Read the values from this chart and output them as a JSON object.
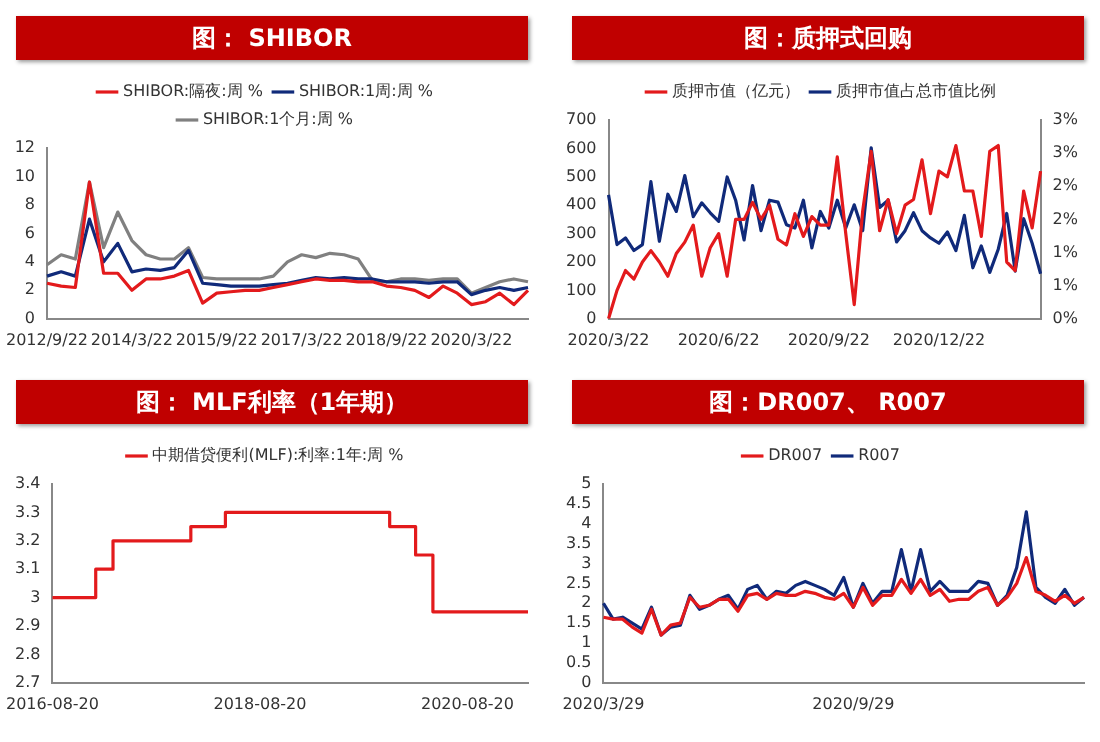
{
  "chart_data": [
    {
      "type": "line",
      "title": "图： SHIBOR",
      "legend": "top",
      "grid": false,
      "marker": "none",
      "ylim": [
        0,
        12
      ],
      "yticks": [
        0,
        2,
        4,
        6,
        8,
        10,
        12
      ],
      "categories": [
        "2012/9/22",
        null,
        null,
        null,
        null,
        null,
        "2014/3/22",
        null,
        null,
        null,
        null,
        null,
        "2015/9/22",
        null,
        null,
        null,
        null,
        null,
        "2017/3/22",
        null,
        null,
        null,
        null,
        null,
        "2018/9/22",
        null,
        null,
        null,
        null,
        null,
        "2020/3/22",
        null,
        null,
        null,
        null
      ],
      "series": [
        {
          "name": "SHIBOR:隔夜:周 %",
          "color": "#e31a1c",
          "values": [
            2.5,
            2.3,
            2.2,
            9.6,
            3.2,
            3.2,
            2.0,
            2.8,
            2.8,
            3.0,
            3.4,
            1.1,
            1.8,
            1.9,
            2.0,
            2.0,
            2.2,
            2.4,
            2.6,
            2.8,
            2.7,
            2.7,
            2.6,
            2.6,
            2.3,
            2.2,
            2.0,
            1.5,
            2.3,
            1.8,
            1.0,
            1.2,
            1.8,
            1.0,
            2.0
          ]
        },
        {
          "name": "SHIBOR:1周:周 %",
          "color": "#102a7a",
          "values": [
            3.0,
            3.3,
            3.0,
            7.0,
            4.0,
            5.3,
            3.3,
            3.5,
            3.4,
            3.6,
            4.8,
            2.5,
            2.4,
            2.3,
            2.3,
            2.3,
            2.4,
            2.5,
            2.7,
            2.9,
            2.8,
            2.9,
            2.8,
            2.8,
            2.6,
            2.6,
            2.6,
            2.5,
            2.6,
            2.6,
            1.7,
            2.0,
            2.2,
            2.0,
            2.2
          ]
        },
        {
          "name": "SHIBOR:1个月:周 %",
          "color": "#808080",
          "values": [
            3.8,
            4.5,
            4.2,
            9.6,
            5.0,
            7.5,
            5.5,
            4.5,
            4.2,
            4.2,
            5.0,
            2.9,
            2.8,
            2.8,
            2.8,
            2.8,
            3.0,
            4.0,
            4.5,
            4.3,
            4.6,
            4.5,
            4.2,
            2.7,
            2.6,
            2.8,
            2.8,
            2.7,
            2.8,
            2.8,
            1.8,
            2.2,
            2.6,
            2.8,
            2.6
          ]
        }
      ]
    },
    {
      "type": "line",
      "title": "图：质押式回购",
      "legend": "top",
      "grid": false,
      "marker": "none",
      "ylim": [
        0,
        700
      ],
      "yticks": [
        0,
        100,
        200,
        300,
        400,
        500,
        600,
        700
      ],
      "y2lim": [
        0,
        3
      ],
      "y2ticks": [
        {
          "value": 0,
          "label": "0%"
        },
        {
          "value": 0.5,
          "label": "1%"
        },
        {
          "value": 1,
          "label": "1%"
        },
        {
          "value": 1.5,
          "label": "2%"
        },
        {
          "value": 2,
          "label": "2%"
        },
        {
          "value": 2.5,
          "label": "3%"
        },
        {
          "value": 3,
          "label": "3%"
        }
      ],
      "categories": [
        "2020/3/22",
        null,
        null,
        null,
        null,
        null,
        null,
        null,
        null,
        null,
        null,
        null,
        null,
        "2020/6/22",
        null,
        null,
        null,
        null,
        null,
        null,
        null,
        null,
        null,
        null,
        null,
        null,
        "2020/9/22",
        null,
        null,
        null,
        null,
        null,
        null,
        null,
        null,
        null,
        null,
        null,
        null,
        "2020/12/22",
        null,
        null,
        null,
        null,
        null,
        null,
        null,
        null,
        null,
        null,
        null,
        null
      ],
      "series": [
        {
          "name": "质押市值（亿元）",
          "color": "#e31a1c",
          "values": [
            0,
            100,
            170,
            140,
            200,
            240,
            200,
            150,
            230,
            270,
            330,
            150,
            250,
            300,
            150,
            350,
            350,
            410,
            350,
            400,
            280,
            260,
            370,
            290,
            360,
            330,
            330,
            570,
            300,
            50,
            380,
            590,
            310,
            420,
            300,
            400,
            420,
            560,
            370,
            520,
            500,
            610,
            450,
            450,
            290,
            590,
            610,
            200,
            170,
            450,
            320,
            520
          ]
        },
        {
          "name": "质押市值占总市值比例",
          "color": "#102a7a",
          "axis": "y2",
          "values": [
            1.87,
            1.12,
            1.22,
            1.03,
            1.12,
            2.07,
            1.17,
            1.88,
            1.62,
            2.16,
            1.54,
            1.75,
            1.6,
            1.47,
            2.14,
            1.79,
            1.19,
            2.01,
            1.33,
            1.79,
            1.76,
            1.42,
            1.37,
            1.79,
            1.07,
            1.62,
            1.37,
            1.79,
            1.37,
            1.72,
            1.33,
            2.58,
            1.68,
            1.79,
            1.16,
            1.33,
            1.6,
            1.33,
            1.22,
            1.14,
            1.31,
            1.03,
            1.56,
            0.77,
            1.1,
            0.7,
            1.05,
            1.59,
            0.72,
            1.51,
            1.14,
            0.68
          ]
        }
      ]
    },
    {
      "type": "step",
      "title": "图： MLF利率（1年期）",
      "legend": "top",
      "grid": false,
      "marker": "none",
      "ylim": [
        2.7,
        3.4
      ],
      "yticks": [
        2.7,
        2.8,
        2.9,
        3,
        3.1,
        3.2,
        3.3,
        3.4
      ],
      "categories": [
        "2016-08-20",
        null,
        null,
        null,
        null,
        null,
        null,
        null,
        null,
        null,
        null,
        null,
        null,
        null,
        null,
        null,
        null,
        null,
        null,
        null,
        null,
        null,
        null,
        null,
        "2018-08-20",
        null,
        null,
        null,
        null,
        null,
        null,
        null,
        null,
        null,
        null,
        null,
        null,
        null,
        null,
        null,
        null,
        null,
        null,
        null,
        null,
        null,
        null,
        null,
        "2020-08-20",
        null,
        null,
        null,
        null,
        null,
        null,
        null
      ],
      "series": [
        {
          "name": "中期借贷便利(MLF):利率:1年:周 %",
          "color": "#e31a1c",
          "values": [
            3,
            3,
            3,
            3,
            3,
            3.1,
            3.1,
            3.2,
            3.2,
            3.2,
            3.2,
            3.2,
            3.2,
            3.2,
            3.2,
            3.2,
            3.25,
            3.25,
            3.25,
            3.25,
            3.3,
            3.3,
            3.3,
            3.3,
            3.3,
            3.3,
            3.3,
            3.3,
            3.3,
            3.3,
            3.3,
            3.3,
            3.3,
            3.3,
            3.3,
            3.3,
            3.3,
            3.3,
            3.3,
            3.25,
            3.25,
            3.25,
            3.15,
            3.15,
            2.95,
            2.95,
            2.95,
            2.95,
            2.95,
            2.95,
            2.95,
            2.95,
            2.95,
            2.95,
            2.95,
            2.95
          ]
        }
      ]
    },
    {
      "type": "line",
      "title": "图：DR007、 R007",
      "legend": "top",
      "grid": false,
      "marker": "none",
      "ylim": [
        0,
        5
      ],
      "yticks": [
        0,
        0.5,
        1,
        1.5,
        2,
        2.5,
        3,
        3.5,
        4,
        4.5,
        5
      ],
      "categories": [
        "2020/3/29",
        null,
        null,
        null,
        null,
        null,
        null,
        null,
        null,
        null,
        null,
        null,
        null,
        null,
        null,
        null,
        null,
        null,
        null,
        null,
        null,
        null,
        null,
        null,
        null,
        null,
        "2020/9/29",
        null,
        null,
        null,
        null,
        null,
        null,
        null,
        null,
        null,
        null,
        null,
        null,
        null,
        null,
        null,
        null,
        null,
        null,
        null,
        null,
        null,
        null,
        null,
        null
      ],
      "series": [
        {
          "name": "DR007",
          "color": "#e31a1c",
          "values": [
            1.65,
            1.6,
            1.6,
            1.4,
            1.25,
            1.85,
            1.2,
            1.45,
            1.5,
            2.15,
            1.9,
            1.95,
            2.1,
            2.1,
            1.8,
            2.2,
            2.25,
            2.1,
            2.25,
            2.2,
            2.2,
            2.3,
            2.25,
            2.15,
            2.1,
            2.25,
            1.9,
            2.4,
            1.95,
            2.2,
            2.2,
            2.6,
            2.25,
            2.6,
            2.2,
            2.35,
            2.05,
            2.1,
            2.1,
            2.3,
            2.4,
            1.95,
            2.15,
            2.5,
            3.15,
            2.3,
            2.2,
            2.05,
            2.2,
            2.0,
            2.15
          ]
        },
        {
          "name": "R007",
          "color": "#102a7a",
          "values": [
            2.0,
            1.6,
            1.65,
            1.5,
            1.35,
            1.9,
            1.2,
            1.4,
            1.45,
            2.2,
            1.85,
            1.95,
            2.1,
            2.2,
            1.85,
            2.35,
            2.45,
            2.1,
            2.3,
            2.25,
            2.45,
            2.55,
            2.45,
            2.35,
            2.2,
            2.65,
            1.9,
            2.5,
            2.0,
            2.3,
            2.3,
            3.35,
            2.3,
            3.35,
            2.3,
            2.55,
            2.3,
            2.3,
            2.3,
            2.55,
            2.5,
            1.95,
            2.2,
            2.9,
            4.3,
            2.4,
            2.15,
            2.0,
            2.35,
            1.95,
            2.15
          ]
        }
      ]
    }
  ]
}
